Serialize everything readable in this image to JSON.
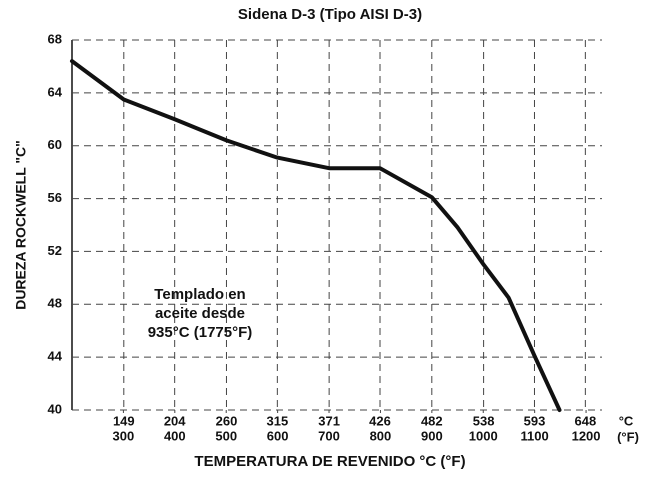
{
  "chart_data": {
    "type": "line",
    "title": "Sidena D-3 (Tipo AISI D-3)",
    "x_label": "TEMPERATURA DE REVENIDO °C (°F)",
    "y_label": "DUREZA ROCKWELL \"C\"",
    "x_unit": "°C",
    "x2_unit": "(°F)",
    "annotation": [
      "Templado en",
      "aceite desde",
      "935°C (1775°F)"
    ],
    "x": [
      93,
      149,
      204,
      260,
      315,
      371,
      426,
      482,
      510,
      538,
      565,
      593,
      620
    ],
    "series": [
      {
        "name": "Sidena D-3",
        "color": "#111111",
        "values": [
          66.4,
          63.5,
          62,
          60.4,
          59.1,
          58.3,
          58.3,
          56.1,
          53.8,
          51,
          48.5,
          44.1,
          40
        ]
      }
    ],
    "xlim": [
      93,
      666
    ],
    "xticks": [
      149,
      204,
      260,
      315,
      371,
      426,
      482,
      538,
      593,
      648
    ],
    "x2lim": [
      200,
      1231
    ],
    "x2ticks": [
      300,
      400,
      500,
      600,
      700,
      800,
      900,
      1000,
      1100,
      1200
    ],
    "ylim": [
      40,
      68
    ],
    "yticks": [
      40,
      44,
      48,
      52,
      56,
      60,
      64,
      68
    ],
    "grid": true
  }
}
